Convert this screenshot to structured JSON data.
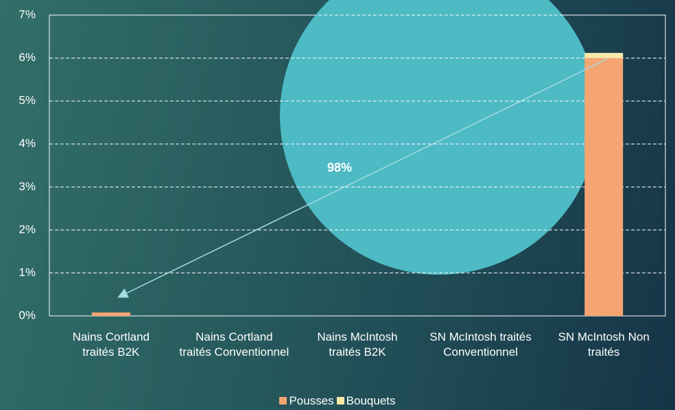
{
  "chart_data": {
    "type": "bar",
    "stacked": true,
    "annotation": "98%",
    "categories": [
      "Nains Cortland traités B2K",
      "Nains Cortland traités Conventionnel",
      "Nains McIntosh traités B2K",
      "SN McIntosh traités Conventionnel",
      "SN McIntosh Non traités"
    ],
    "series": [
      {
        "name": "Pousses",
        "color": "#f4a572",
        "values": [
          0.08,
          0,
          0,
          0,
          6.0
        ]
      },
      {
        "name": "Bouquets",
        "color": "#f7e9a9",
        "values": [
          0,
          0,
          0,
          0,
          0.12
        ]
      }
    ],
    "ylim": [
      0,
      7
    ],
    "yticks": [
      {
        "value": 0,
        "label": "0%"
      },
      {
        "value": 1,
        "label": "1%"
      },
      {
        "value": 2,
        "label": "2%"
      },
      {
        "value": 3,
        "label": "3%"
      },
      {
        "value": 4,
        "label": "4%"
      },
      {
        "value": 5,
        "label": "5%"
      },
      {
        "value": 6,
        "label": "6%"
      },
      {
        "value": 7,
        "label": "7%"
      }
    ],
    "grid": true,
    "legend": "bottom"
  }
}
